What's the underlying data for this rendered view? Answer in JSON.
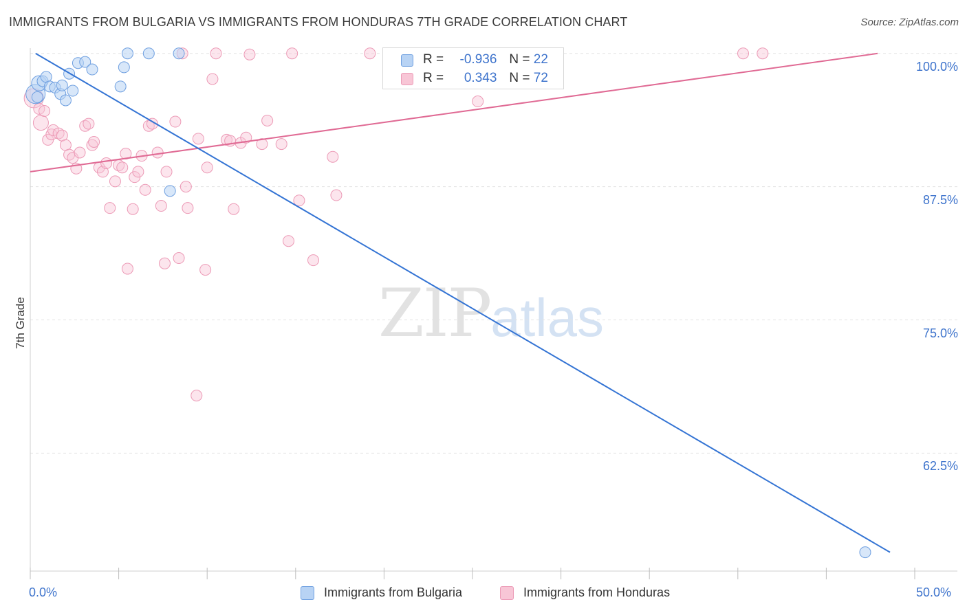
{
  "header": {
    "title": "IMMIGRANTS FROM BULGARIA VS IMMIGRANTS FROM HONDURAS 7TH GRADE CORRELATION CHART",
    "source": "Source: ZipAtlas.com"
  },
  "watermark": {
    "zip": "ZIP",
    "atlas": "atlas"
  },
  "legend": {
    "rows": [
      {
        "r_label": "R =",
        "r_value": "-0.936",
        "n_label": "N =",
        "n_value": "22"
      },
      {
        "r_label": "R =",
        "r_value": "0.343",
        "n_label": "N =",
        "n_value": "72"
      }
    ]
  },
  "bottom_legend": [
    "Immigrants from Bulgaria",
    "Immigrants from Honduras"
  ],
  "colors": {
    "bulgaria_fill": "#b8d3f4",
    "bulgaria_stroke": "#6e9fe0",
    "bulgaria_line": "#3474d4",
    "honduras_fill": "#f8c6d6",
    "honduras_stroke": "#ec9ab6",
    "honduras_line": "#e06a94",
    "tick_label": "#3d73cc",
    "grid": "#e3e3e3"
  },
  "chart_data": {
    "type": "scatter",
    "title": "IMMIGRANTS FROM BULGARIA VS IMMIGRANTS FROM HONDURAS 7TH GRADE CORRELATION CHART",
    "xlabel": "",
    "ylabel": "7th Grade",
    "xlim": [
      0,
      50
    ],
    "ylim": [
      51.5,
      100.5
    ],
    "x_tick_labels": [
      {
        "value": 0,
        "label": "0.0%"
      },
      {
        "value": 50,
        "label": "50.0%"
      }
    ],
    "y_tick_labels": [
      {
        "value": 100,
        "label": "100.0%"
      },
      {
        "value": 87.5,
        "label": "87.5%"
      },
      {
        "value": 75,
        "label": "75.0%"
      },
      {
        "value": 62.5,
        "label": "62.5%"
      }
    ],
    "grid": "horizontal dashed",
    "legend_position": "top-center",
    "series": [
      {
        "name": "Immigrants from Bulgaria",
        "r": -0.936,
        "n": 22,
        "trend": {
          "x": [
            0.3,
            48.6
          ],
          "y": [
            100.0,
            53.2
          ]
        },
        "points": [
          {
            "x": 0.3,
            "y": 96.2,
            "s": 3
          },
          {
            "x": 0.5,
            "y": 97.2,
            "s": 2
          },
          {
            "x": 0.7,
            "y": 97.4,
            "s": 1
          },
          {
            "x": 0.9,
            "y": 97.8,
            "s": 1
          },
          {
            "x": 1.1,
            "y": 96.9,
            "s": 1
          },
          {
            "x": 1.4,
            "y": 96.8,
            "s": 1
          },
          {
            "x": 1.7,
            "y": 96.2,
            "s": 1
          },
          {
            "x": 1.8,
            "y": 97.0,
            "s": 1
          },
          {
            "x": 2.0,
            "y": 95.6,
            "s": 1
          },
          {
            "x": 2.2,
            "y": 98.1,
            "s": 1
          },
          {
            "x": 2.4,
            "y": 96.5,
            "s": 1
          },
          {
            "x": 2.7,
            "y": 99.1,
            "s": 1
          },
          {
            "x": 3.1,
            "y": 99.2,
            "s": 1
          },
          {
            "x": 3.5,
            "y": 98.5,
            "s": 1
          },
          {
            "x": 5.1,
            "y": 96.9,
            "s": 1
          },
          {
            "x": 5.3,
            "y": 98.7,
            "s": 1
          },
          {
            "x": 5.5,
            "y": 100.0,
            "s": 1
          },
          {
            "x": 6.7,
            "y": 100.0,
            "s": 1
          },
          {
            "x": 8.4,
            "y": 100.0,
            "s": 1
          },
          {
            "x": 7.9,
            "y": 87.1,
            "s": 1
          },
          {
            "x": 47.2,
            "y": 53.2,
            "s": 1
          },
          {
            "x": 0.4,
            "y": 95.9,
            "s": 1
          }
        ]
      },
      {
        "name": "Immigrants from Honduras",
        "r": 0.343,
        "n": 72,
        "trend": {
          "x": [
            0.0,
            47.9
          ],
          "y": [
            88.9,
            100.0
          ]
        },
        "points": [
          {
            "x": 0.2,
            "y": 95.8,
            "s": 3
          },
          {
            "x": 0.5,
            "y": 94.8,
            "s": 1
          },
          {
            "x": 0.6,
            "y": 93.5,
            "s": 2
          },
          {
            "x": 0.8,
            "y": 94.6,
            "s": 1
          },
          {
            "x": 1.0,
            "y": 91.9,
            "s": 1
          },
          {
            "x": 1.2,
            "y": 92.4,
            "s": 1
          },
          {
            "x": 1.3,
            "y": 92.8,
            "s": 1
          },
          {
            "x": 1.6,
            "y": 92.5,
            "s": 1
          },
          {
            "x": 1.8,
            "y": 92.3,
            "s": 1
          },
          {
            "x": 2.0,
            "y": 91.4,
            "s": 1
          },
          {
            "x": 2.2,
            "y": 90.5,
            "s": 1
          },
          {
            "x": 2.4,
            "y": 90.2,
            "s": 1
          },
          {
            "x": 2.6,
            "y": 89.2,
            "s": 1
          },
          {
            "x": 2.8,
            "y": 90.7,
            "s": 1
          },
          {
            "x": 3.1,
            "y": 93.2,
            "s": 1
          },
          {
            "x": 3.3,
            "y": 93.4,
            "s": 1
          },
          {
            "x": 3.5,
            "y": 91.4,
            "s": 1
          },
          {
            "x": 3.6,
            "y": 91.7,
            "s": 1
          },
          {
            "x": 3.9,
            "y": 89.3,
            "s": 1
          },
          {
            "x": 4.1,
            "y": 88.9,
            "s": 1
          },
          {
            "x": 4.3,
            "y": 89.7,
            "s": 1
          },
          {
            "x": 4.5,
            "y": 85.5,
            "s": 1
          },
          {
            "x": 4.8,
            "y": 88.0,
            "s": 1
          },
          {
            "x": 5.0,
            "y": 89.5,
            "s": 1
          },
          {
            "x": 5.2,
            "y": 89.3,
            "s": 1
          },
          {
            "x": 5.4,
            "y": 90.6,
            "s": 1
          },
          {
            "x": 5.5,
            "y": 79.8,
            "s": 1
          },
          {
            "x": 5.8,
            "y": 85.4,
            "s": 1
          },
          {
            "x": 5.9,
            "y": 88.4,
            "s": 1
          },
          {
            "x": 6.1,
            "y": 88.9,
            "s": 1
          },
          {
            "x": 6.3,
            "y": 90.4,
            "s": 1
          },
          {
            "x": 6.5,
            "y": 87.2,
            "s": 1
          },
          {
            "x": 6.7,
            "y": 93.2,
            "s": 1
          },
          {
            "x": 6.9,
            "y": 93.4,
            "s": 1
          },
          {
            "x": 7.2,
            "y": 90.7,
            "s": 1
          },
          {
            "x": 7.4,
            "y": 85.7,
            "s": 1
          },
          {
            "x": 7.6,
            "y": 80.3,
            "s": 1
          },
          {
            "x": 7.7,
            "y": 88.9,
            "s": 1
          },
          {
            "x": 8.2,
            "y": 93.6,
            "s": 1
          },
          {
            "x": 8.4,
            "y": 80.8,
            "s": 1
          },
          {
            "x": 8.8,
            "y": 87.5,
            "s": 1
          },
          {
            "x": 8.9,
            "y": 85.5,
            "s": 1
          },
          {
            "x": 9.4,
            "y": 67.9,
            "s": 1
          },
          {
            "x": 9.5,
            "y": 92.0,
            "s": 1
          },
          {
            "x": 9.9,
            "y": 79.7,
            "s": 1
          },
          {
            "x": 10.0,
            "y": 89.3,
            "s": 1
          },
          {
            "x": 10.3,
            "y": 97.6,
            "s": 1
          },
          {
            "x": 10.5,
            "y": 100.0,
            "s": 1
          },
          {
            "x": 11.1,
            "y": 91.9,
            "s": 1
          },
          {
            "x": 11.3,
            "y": 91.8,
            "s": 1
          },
          {
            "x": 11.5,
            "y": 85.4,
            "s": 1
          },
          {
            "x": 11.9,
            "y": 91.6,
            "s": 1
          },
          {
            "x": 12.2,
            "y": 92.1,
            "s": 1
          },
          {
            "x": 12.4,
            "y": 99.9,
            "s": 1
          },
          {
            "x": 13.1,
            "y": 91.5,
            "s": 1
          },
          {
            "x": 13.4,
            "y": 93.7,
            "s": 1
          },
          {
            "x": 14.2,
            "y": 91.5,
            "s": 1
          },
          {
            "x": 14.6,
            "y": 82.4,
            "s": 1
          },
          {
            "x": 14.8,
            "y": 100.0,
            "s": 1
          },
          {
            "x": 15.2,
            "y": 86.2,
            "s": 1
          },
          {
            "x": 16.0,
            "y": 80.6,
            "s": 1
          },
          {
            "x": 17.1,
            "y": 90.3,
            "s": 1
          },
          {
            "x": 17.3,
            "y": 86.7,
            "s": 1
          },
          {
            "x": 19.2,
            "y": 100.0,
            "s": 1
          },
          {
            "x": 22.3,
            "y": 100.0,
            "s": 1
          },
          {
            "x": 25.3,
            "y": 95.5,
            "s": 1
          },
          {
            "x": 28.1,
            "y": 100.0,
            "s": 1
          },
          {
            "x": 28.8,
            "y": 99.9,
            "s": 1
          },
          {
            "x": 40.3,
            "y": 100.0,
            "s": 1
          },
          {
            "x": 41.4,
            "y": 100.0,
            "s": 1
          },
          {
            "x": 8.6,
            "y": 100.0,
            "s": 1
          },
          {
            "x": 25.0,
            "y": 100.0,
            "s": 1
          }
        ]
      }
    ]
  }
}
